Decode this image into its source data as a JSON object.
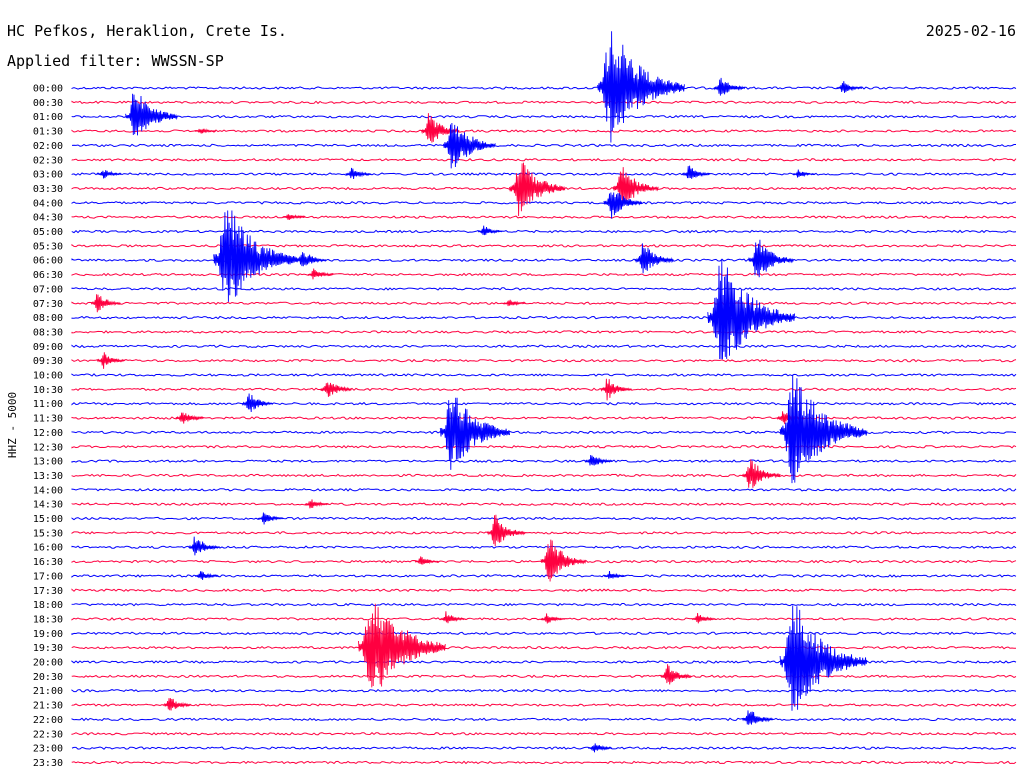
{
  "header": {
    "station": "HC Pefkos, Heraklion, Crete Is.",
    "date": "2025-02-16",
    "filter": "Applied filter: WWSSN-SP"
  },
  "channel_label": "HHZ - 5000",
  "colors": {
    "even": "#0000ff",
    "odd": "#ff0040",
    "text": "#000000",
    "background": "#ffffff"
  },
  "chart_data": {
    "type": "line",
    "time_labels": [
      "00:00",
      "00:30",
      "01:00",
      "01:30",
      "02:00",
      "02:30",
      "03:00",
      "03:30",
      "04:00",
      "04:30",
      "05:00",
      "05:30",
      "06:00",
      "06:30",
      "07:00",
      "07:30",
      "08:00",
      "08:30",
      "09:00",
      "09:30",
      "10:00",
      "10:30",
      "11:00",
      "11:30",
      "12:00",
      "12:30",
      "13:00",
      "13:30",
      "14:00",
      "14:30",
      "15:00",
      "15:30",
      "16:00",
      "16:30",
      "17:00",
      "17:30",
      "18:00",
      "18:30",
      "19:00",
      "19:30",
      "20:00",
      "20:30",
      "21:00",
      "21:30",
      "22:00",
      "22:30",
      "23:00",
      "23:30"
    ],
    "row_minutes": 30,
    "events": [
      {
        "row": 0,
        "min": 16.8,
        "amp": 1.0
      },
      {
        "row": 0,
        "min": 20.5,
        "amp": 0.2
      },
      {
        "row": 0,
        "min": 24.4,
        "amp": 0.12
      },
      {
        "row": 2,
        "min": 1.8,
        "amp": 0.5
      },
      {
        "row": 3,
        "min": 11.2,
        "amp": 0.3
      },
      {
        "row": 4,
        "min": 11.9,
        "amp": 0.5
      },
      {
        "row": 3,
        "min": 4.0,
        "amp": 0.06
      },
      {
        "row": 6,
        "min": 0.9,
        "amp": 0.1
      },
      {
        "row": 6,
        "min": 8.8,
        "amp": 0.12
      },
      {
        "row": 6,
        "min": 19.5,
        "amp": 0.15
      },
      {
        "row": 6,
        "min": 23.0,
        "amp": 0.08
      },
      {
        "row": 7,
        "min": 14.0,
        "amp": 0.55
      },
      {
        "row": 7,
        "min": 17.3,
        "amp": 0.4
      },
      {
        "row": 8,
        "min": 17.0,
        "amp": 0.3
      },
      {
        "row": 9,
        "min": 6.8,
        "amp": 0.08
      },
      {
        "row": 10,
        "min": 13.0,
        "amp": 0.1
      },
      {
        "row": 12,
        "min": 4.6,
        "amp": 0.95
      },
      {
        "row": 12,
        "min": 7.2,
        "amp": 0.2
      },
      {
        "row": 12,
        "min": 18.0,
        "amp": 0.3
      },
      {
        "row": 12,
        "min": 21.6,
        "amp": 0.4
      },
      {
        "row": 13,
        "min": 7.6,
        "amp": 0.12
      },
      {
        "row": 15,
        "min": 0.7,
        "amp": 0.18
      },
      {
        "row": 15,
        "min": 13.8,
        "amp": 0.08
      },
      {
        "row": 16,
        "min": 20.3,
        "amp": 1.0
      },
      {
        "row": 19,
        "min": 0.9,
        "amp": 0.15
      },
      {
        "row": 21,
        "min": 8.0,
        "amp": 0.2
      },
      {
        "row": 21,
        "min": 16.9,
        "amp": 0.2
      },
      {
        "row": 22,
        "min": 5.5,
        "amp": 0.2
      },
      {
        "row": 23,
        "min": 3.4,
        "amp": 0.15
      },
      {
        "row": 23,
        "min": 22.5,
        "amp": 0.15
      },
      {
        "row": 24,
        "min": 11.8,
        "amp": 0.75
      },
      {
        "row": 24,
        "min": 22.6,
        "amp": 1.0
      },
      {
        "row": 26,
        "min": 16.4,
        "amp": 0.15
      },
      {
        "row": 27,
        "min": 21.4,
        "amp": 0.3
      },
      {
        "row": 29,
        "min": 7.5,
        "amp": 0.1
      },
      {
        "row": 30,
        "min": 6.0,
        "amp": 0.12
      },
      {
        "row": 31,
        "min": 13.3,
        "amp": 0.3
      },
      {
        "row": 32,
        "min": 3.8,
        "amp": 0.2
      },
      {
        "row": 33,
        "min": 15.0,
        "amp": 0.4
      },
      {
        "row": 33,
        "min": 11.0,
        "amp": 0.1
      },
      {
        "row": 34,
        "min": 4.0,
        "amp": 0.1
      },
      {
        "row": 34,
        "min": 17.0,
        "amp": 0.08
      },
      {
        "row": 37,
        "min": 11.8,
        "amp": 0.12
      },
      {
        "row": 37,
        "min": 15.0,
        "amp": 0.1
      },
      {
        "row": 37,
        "min": 19.8,
        "amp": 0.1
      },
      {
        "row": 39,
        "min": 9.2,
        "amp": 1.0
      },
      {
        "row": 40,
        "min": 22.6,
        "amp": 1.0
      },
      {
        "row": 41,
        "min": 18.8,
        "amp": 0.2
      },
      {
        "row": 43,
        "min": 3.0,
        "amp": 0.15
      },
      {
        "row": 44,
        "min": 21.4,
        "amp": 0.2
      },
      {
        "row": 46,
        "min": 16.5,
        "amp": 0.1
      }
    ]
  }
}
